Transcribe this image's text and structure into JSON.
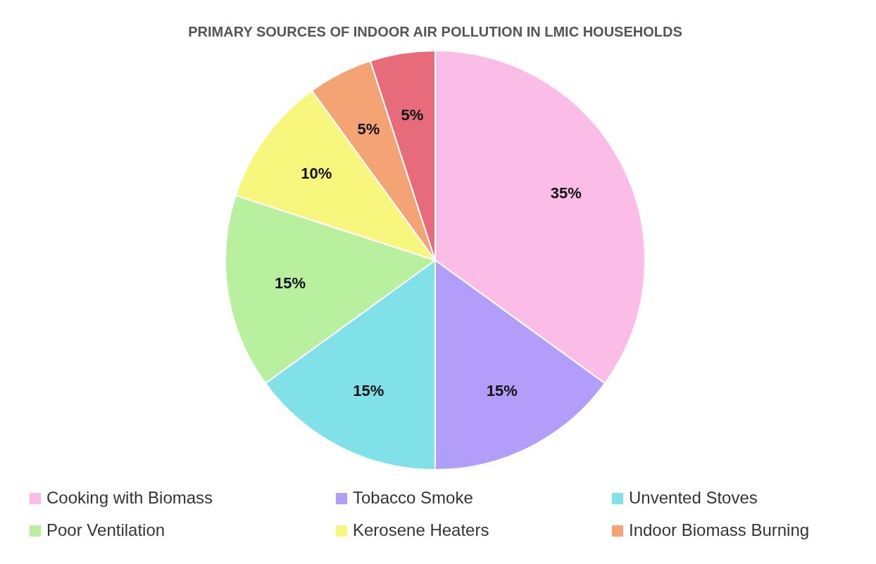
{
  "chart_data": {
    "type": "pie",
    "title": "PRIMARY SOURCES OF INDOOR AIR POLLUTION IN LMIC HOUSEHOLDS",
    "categories": [
      "Cooking with Biomass",
      "Tobacco Smoke",
      "Unvented Stoves",
      "Poor Ventilation",
      "Kerosene Heaters",
      "Indoor Biomass Burning",
      null
    ],
    "values": [
      35,
      15,
      15,
      15,
      10,
      5,
      5
    ],
    "colors": [
      "#fbbde8",
      "#b39dfb",
      "#80e1e8",
      "#b9f0a0",
      "#f7f77e",
      "#f4a474",
      "#e86b7c"
    ],
    "value_labels": [
      "35%",
      "15%",
      "15%",
      "15%",
      "10%",
      "5%",
      "5%"
    ],
    "legend": "bottom"
  }
}
